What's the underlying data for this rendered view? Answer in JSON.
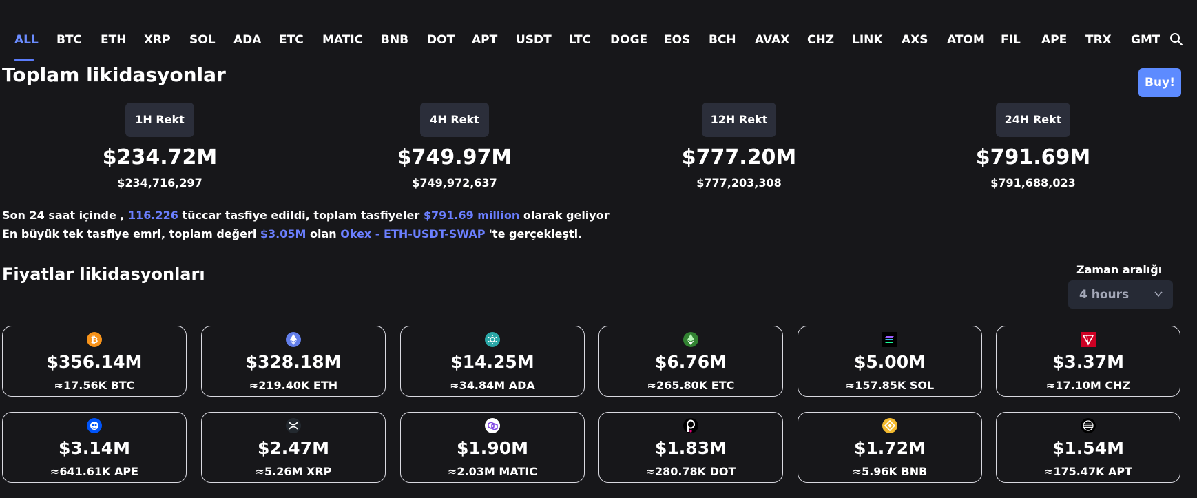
{
  "tabs": [
    "ALL",
    "BTC",
    "ETH",
    "XRP",
    "SOL",
    "ADA",
    "ETC",
    "MATIC",
    "BNB",
    "DOT",
    "APT",
    "USDT",
    "LTC",
    "DOGE",
    "EOS",
    "BCH",
    "AVAX",
    "CHZ",
    "LINK",
    "AXS",
    "ATOM",
    "FIL",
    "APE",
    "TRX",
    "GMT"
  ],
  "active_tab": "ALL",
  "header": {
    "title": "Toplam likidasyonlar",
    "buy_label": "Buy!"
  },
  "stats": [
    {
      "label": "1H Rekt",
      "value": "$234.72M",
      "exact": "$234,716,297"
    },
    {
      "label": "4H Rekt",
      "value": "$749.97M",
      "exact": "$749,972,637"
    },
    {
      "label": "12H Rekt",
      "value": "$777.20M",
      "exact": "$777,203,308"
    },
    {
      "label": "24H Rekt",
      "value": "$791.69M",
      "exact": "$791,688,023"
    }
  ],
  "summary": {
    "l1_a": "Son 24 saat içinde ,",
    "l1_traders": "116.226",
    "l1_b": "tüccar tasfiye edildi, toplam tasfiyeler",
    "l1_total": "$791.69 million",
    "l1_c": "olarak geliyor",
    "l2_a": "En büyük tek tasfiye emri, toplam değeri",
    "l2_value": "$3.05M",
    "l2_b": "olan",
    "l2_exchange": "Okex - ETH-USDT-SWAP",
    "l2_c": "'te gerçekleşti."
  },
  "prices_section": {
    "title": "Fiyatlar likidasyonları",
    "range_label": "Zaman aralığı",
    "range_value": "4 hours"
  },
  "coins": [
    {
      "icon": "bitcoin-icon",
      "color": "#f7931a",
      "amount": "$356.14M",
      "sub": "≈17.56K BTC"
    },
    {
      "icon": "ethereum-icon",
      "color": "#627eea",
      "amount": "$328.18M",
      "sub": "≈219.40K ETH"
    },
    {
      "icon": "cardano-icon",
      "color": "#2aa7a7",
      "amount": "$14.25M",
      "sub": "≈34.84M ADA"
    },
    {
      "icon": "ethereum-classic-icon",
      "color": "#328332",
      "amount": "$6.76M",
      "sub": "≈265.80K ETC"
    },
    {
      "icon": "solana-icon",
      "color": "#000000",
      "amount": "$5.00M",
      "sub": "≈157.85K SOL"
    },
    {
      "icon": "chiliz-icon",
      "color": "#cd0124",
      "amount": "$3.37M",
      "sub": "≈17.10M CHZ"
    },
    {
      "icon": "apecoin-icon",
      "color": "#0054f9",
      "amount": "$3.14M",
      "sub": "≈641.61K APE"
    },
    {
      "icon": "xrp-icon",
      "color": "#23292f",
      "amount": "$2.47M",
      "sub": "≈5.26M XRP"
    },
    {
      "icon": "polygon-icon",
      "color": "#ffffff",
      "amount": "$1.90M",
      "sub": "≈2.03M MATIC"
    },
    {
      "icon": "polkadot-icon",
      "color": "#000000",
      "amount": "$1.83M",
      "sub": "≈280.78K DOT"
    },
    {
      "icon": "bnb-icon",
      "color": "#f3ba2f",
      "amount": "$1.72M",
      "sub": "≈5.96K BNB"
    },
    {
      "icon": "aptos-icon",
      "color": "#000000",
      "amount": "$1.54M",
      "sub": "≈175.47K APT"
    }
  ]
}
